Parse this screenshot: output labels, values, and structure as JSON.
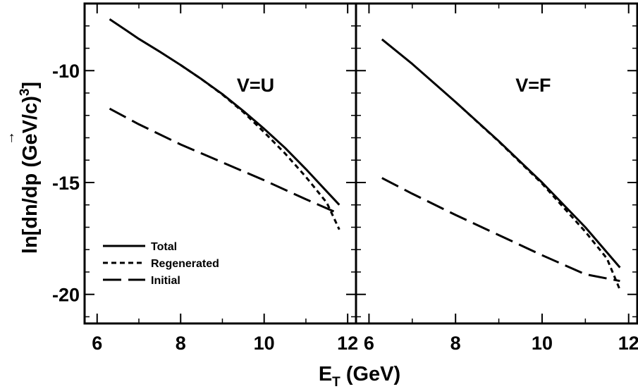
{
  "figure": {
    "ylabel": {
      "prefix": "ln[dn/d",
      "vec": "p",
      "arrow": "→",
      "suffix": " (GeV/c)",
      "sup": "3",
      "close": "]"
    },
    "xlabel": {
      "main": "E",
      "sub": "T",
      "rest": " (GeV)"
    }
  },
  "chart_data": [
    {
      "type": "line",
      "panel": "left",
      "annotation": "V=U",
      "xlim": [
        5.7,
        12.2
      ],
      "ylim": [
        -21.3,
        -7.0
      ],
      "xticks": [
        6,
        8,
        10,
        12
      ],
      "yticks": [
        -10,
        -15,
        -20
      ],
      "xtick_labels": [
        "6",
        "8",
        "10",
        "12"
      ],
      "ytick_labels": [
        "-10",
        "-15",
        "-20"
      ],
      "legend": {
        "placement": "lower-left",
        "entries": [
          "Total",
          "Regenerated",
          "Initial"
        ]
      },
      "series": [
        {
          "name": "Total",
          "style": "solid",
          "x": [
            6.3,
            6.7,
            7.0,
            7.5,
            8.0,
            8.5,
            9.0,
            9.5,
            10.0,
            10.5,
            11.0,
            11.5,
            11.8
          ],
          "y": [
            -7.7,
            -8.2,
            -8.58,
            -9.15,
            -9.75,
            -10.38,
            -11.05,
            -11.8,
            -12.6,
            -13.45,
            -14.4,
            -15.4,
            -16.0
          ]
        },
        {
          "name": "Regenerated",
          "style": "dotted",
          "x": [
            8.0,
            8.5,
            9.0,
            9.5,
            10.0,
            10.5,
            11.0,
            11.5,
            11.8
          ],
          "y": [
            -9.75,
            -10.38,
            -11.07,
            -11.85,
            -12.75,
            -13.7,
            -14.75,
            -15.9,
            -17.1
          ]
        },
        {
          "name": "Initial",
          "style": "dashed",
          "x": [
            6.3,
            7.0,
            8.0,
            9.0,
            10.0,
            11.0,
            11.8
          ],
          "y": [
            -11.7,
            -12.4,
            -13.3,
            -14.1,
            -14.9,
            -15.75,
            -16.4
          ]
        }
      ]
    },
    {
      "type": "line",
      "panel": "right",
      "annotation": "V=F",
      "xlim": [
        5.7,
        12.2
      ],
      "ylim": [
        -21.3,
        -7.0
      ],
      "xticks": [
        6,
        8,
        10,
        12
      ],
      "yticks": [
        -10,
        -15,
        -20
      ],
      "xtick_labels": [
        "6",
        "8",
        "10",
        "12"
      ],
      "series": [
        {
          "name": "Total",
          "style": "solid",
          "x": [
            6.3,
            7.0,
            8.0,
            9.0,
            10.0,
            11.0,
            11.8
          ],
          "y": [
            -8.6,
            -9.7,
            -11.4,
            -13.15,
            -15.0,
            -17.0,
            -18.8
          ]
        },
        {
          "name": "Regenerated",
          "style": "dotted",
          "x": [
            8.0,
            9.0,
            10.0,
            11.0,
            11.5,
            11.8
          ],
          "y": [
            -11.4,
            -13.17,
            -15.05,
            -17.2,
            -18.4,
            -19.8
          ]
        },
        {
          "name": "Initial",
          "style": "dashed",
          "x": [
            6.3,
            7.0,
            8.0,
            9.0,
            10.0,
            11.0,
            11.8
          ],
          "y": [
            -14.8,
            -15.5,
            -16.45,
            -17.35,
            -18.25,
            -19.1,
            -19.4
          ]
        }
      ]
    }
  ]
}
